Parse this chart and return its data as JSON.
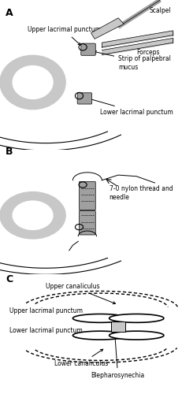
{
  "bg_color": "#ffffff",
  "panel_A_label": "A",
  "panel_B_label": "B",
  "panel_C_label": "C",
  "label_scalpel": "Scalpel",
  "label_forceps": "Forceps",
  "label_strip": "Strip of palpebral\nmucus",
  "label_upper_punct_A": "Upper lacrimal punctum",
  "label_lower_punct_A": "Lower lacrimal punctum",
  "label_nylon": "7-0 nylon thread and\nneedle",
  "label_upper_canal": "Upper canaliculus",
  "label_upper_punct_C": "Upper lacrimal\npunctum",
  "label_lower_punct_C": "Lower lacrimal\npunctum",
  "label_lower_canal": "Lower canaliculus",
  "label_bleph": "Blepharosynechia",
  "gray_light": "#c8c8c8",
  "gray_med": "#a0a0a0",
  "gray_dark": "#707070",
  "line_color": "#000000",
  "font_size": 5.5
}
